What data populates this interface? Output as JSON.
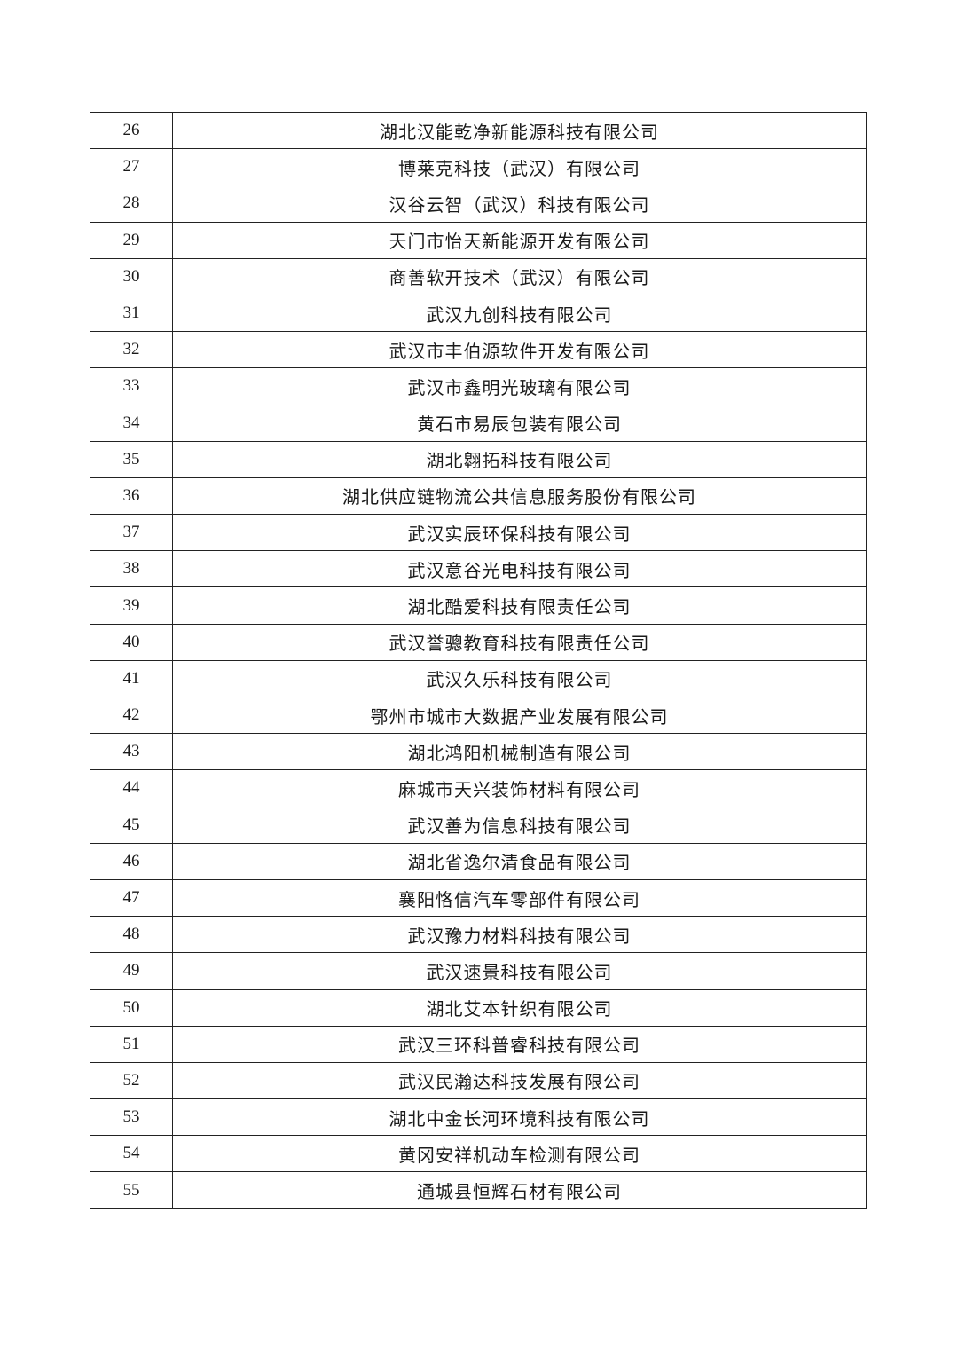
{
  "rows": [
    {
      "no": "26",
      "name": "湖北汉能乾净新能源科技有限公司"
    },
    {
      "no": "27",
      "name": "博莱克科技（武汉）有限公司"
    },
    {
      "no": "28",
      "name": "汉谷云智（武汉）科技有限公司"
    },
    {
      "no": "29",
      "name": "天门市怡天新能源开发有限公司"
    },
    {
      "no": "30",
      "name": "商善软开技术（武汉）有限公司"
    },
    {
      "no": "31",
      "name": "武汉九创科技有限公司"
    },
    {
      "no": "32",
      "name": "武汉市丰伯源软件开发有限公司"
    },
    {
      "no": "33",
      "name": "武汉市鑫明光玻璃有限公司"
    },
    {
      "no": "34",
      "name": "黄石市易辰包装有限公司"
    },
    {
      "no": "35",
      "name": "湖北翱拓科技有限公司"
    },
    {
      "no": "36",
      "name": "湖北供应链物流公共信息服务股份有限公司"
    },
    {
      "no": "37",
      "name": "武汉实辰环保科技有限公司"
    },
    {
      "no": "38",
      "name": "武汉意谷光电科技有限公司"
    },
    {
      "no": "39",
      "name": "湖北酷爱科技有限责任公司"
    },
    {
      "no": "40",
      "name": "武汉誉骢教育科技有限责任公司"
    },
    {
      "no": "41",
      "name": "武汉久乐科技有限公司"
    },
    {
      "no": "42",
      "name": "鄂州市城市大数据产业发展有限公司"
    },
    {
      "no": "43",
      "name": "湖北鸿阳机械制造有限公司"
    },
    {
      "no": "44",
      "name": "麻城市天兴装饰材料有限公司"
    },
    {
      "no": "45",
      "name": "武汉善为信息科技有限公司"
    },
    {
      "no": "46",
      "name": "湖北省逸尔清食品有限公司"
    },
    {
      "no": "47",
      "name": "襄阳恪信汽车零部件有限公司"
    },
    {
      "no": "48",
      "name": "武汉豫力材料科技有限公司"
    },
    {
      "no": "49",
      "name": "武汉速景科技有限公司"
    },
    {
      "no": "50",
      "name": "湖北艾本针织有限公司"
    },
    {
      "no": "51",
      "name": "武汉三环科普睿科技有限公司"
    },
    {
      "no": "52",
      "name": "武汉民瀚达科技发展有限公司"
    },
    {
      "no": "53",
      "name": "湖北中金长河环境科技有限公司"
    },
    {
      "no": "54",
      "name": "黄冈安祥机动车检测有限公司"
    },
    {
      "no": "55",
      "name": "通城县恒辉石材有限公司"
    }
  ]
}
